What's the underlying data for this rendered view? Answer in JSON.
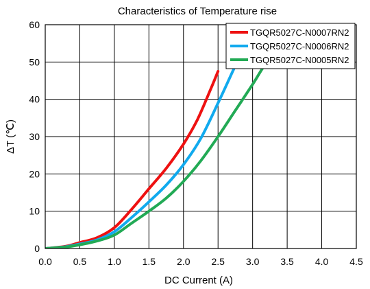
{
  "chart_data": {
    "type": "line",
    "title": "Characteristics of Temperature rise",
    "xlabel": "DC Current (A)",
    "ylabel": "ΔT (℃)",
    "xlim": [
      0,
      4.5
    ],
    "ylim": [
      0,
      60
    ],
    "x_ticks": [
      "0.0",
      "0.5",
      "1.0",
      "1.5",
      "2.0",
      "2.5",
      "3.0",
      "3.5",
      "4.0",
      "4.5"
    ],
    "y_ticks": [
      "0",
      "10",
      "20",
      "30",
      "40",
      "50",
      "60"
    ],
    "grid": true,
    "legend_position": "top-right",
    "series": [
      {
        "name": "TGQR5027C-N0007RN2",
        "color": "#ee1111",
        "points": [
          [
            0,
            0
          ],
          [
            0.3,
            0.6
          ],
          [
            0.5,
            1.6
          ],
          [
            0.75,
            2.9
          ],
          [
            1.0,
            5.6
          ],
          [
            1.25,
            10.5
          ],
          [
            1.5,
            16
          ],
          [
            1.75,
            21.5
          ],
          [
            2.0,
            28
          ],
          [
            2.2,
            34.5
          ],
          [
            2.4,
            43
          ],
          [
            2.5,
            47.5
          ]
        ]
      },
      {
        "name": "TGQR5027C-N0006RN2",
        "color": "#11aaee",
        "points": [
          [
            0,
            0
          ],
          [
            0.3,
            0.5
          ],
          [
            0.5,
            1.2
          ],
          [
            0.75,
            2.3
          ],
          [
            1.0,
            4.5
          ],
          [
            1.25,
            8.3
          ],
          [
            1.5,
            12.5
          ],
          [
            1.75,
            17
          ],
          [
            2.0,
            22.5
          ],
          [
            2.25,
            29.5
          ],
          [
            2.5,
            39
          ],
          [
            2.7,
            47
          ],
          [
            2.8,
            51
          ]
        ]
      },
      {
        "name": "TGQR5027C-N0005RN2",
        "color": "#22aa55",
        "points": [
          [
            0,
            0
          ],
          [
            0.3,
            0.4
          ],
          [
            0.5,
            1.0
          ],
          [
            0.75,
            2.0
          ],
          [
            1.0,
            3.6
          ],
          [
            1.25,
            6.8
          ],
          [
            1.5,
            10
          ],
          [
            1.75,
            13.5
          ],
          [
            2.0,
            18
          ],
          [
            2.25,
            23.5
          ],
          [
            2.5,
            30
          ],
          [
            2.75,
            37
          ],
          [
            3.0,
            44
          ],
          [
            3.15,
            48.5
          ],
          [
            3.25,
            51
          ]
        ]
      }
    ]
  }
}
